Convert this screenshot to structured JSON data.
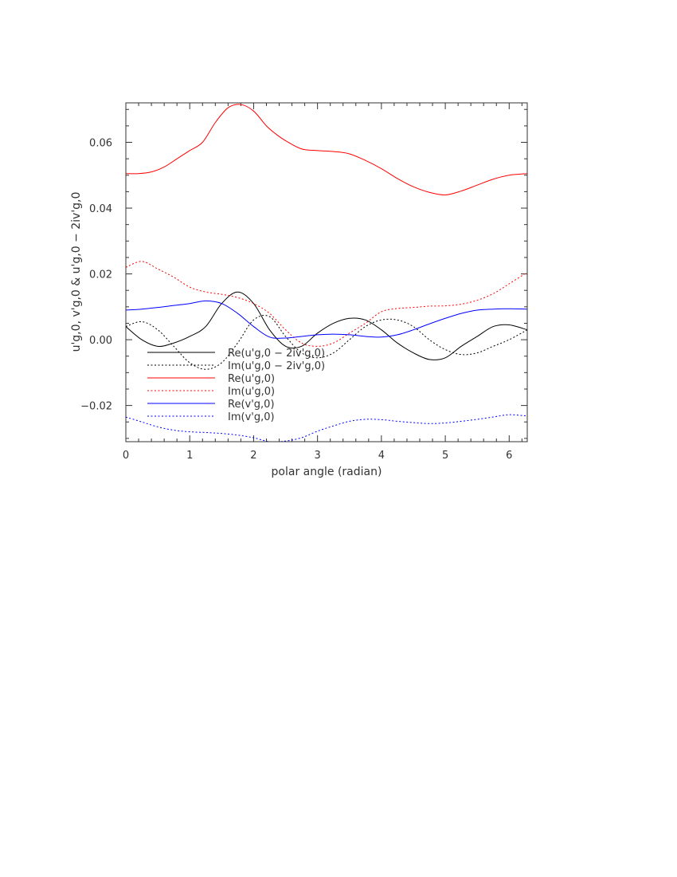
{
  "chart_data": {
    "type": "line",
    "xlabel": "polar angle (radian)",
    "ylabel": "u'g,0, v'g,0 & u'g,0 − 2iv'g,0",
    "xlim": [
      0,
      6.283
    ],
    "ylim": [
      -0.031,
      0.072
    ],
    "x_ticks": [
      0,
      1,
      2,
      3,
      4,
      5,
      6
    ],
    "y_ticks": [
      -0.02,
      0.0,
      0.02,
      0.04,
      0.06
    ],
    "x_tick_labels": [
      "0",
      "1",
      "2",
      "3",
      "4",
      "5",
      "6"
    ],
    "y_tick_labels": [
      "−0.02",
      "0.00",
      "0.02",
      "0.04",
      "0.06"
    ],
    "grid": false,
    "legend_position": "lower-left",
    "series": [
      {
        "name": "Re(u'g,0 − 2iv'g,0)",
        "color": "#000000",
        "dash": "solid",
        "x": [
          0,
          0.25,
          0.5,
          0.75,
          1.0,
          1.25,
          1.5,
          1.75,
          2.0,
          2.25,
          2.5,
          2.75,
          3.0,
          3.25,
          3.5,
          3.75,
          4.0,
          4.25,
          4.5,
          4.75,
          5.0,
          5.25,
          5.5,
          5.75,
          6.0,
          6.283
        ],
        "y": [
          0.004,
          0.0,
          -0.002,
          -0.001,
          0.001,
          0.004,
          0.011,
          0.0145,
          0.011,
          0.003,
          -0.002,
          -0.002,
          0.002,
          0.005,
          0.0065,
          0.006,
          0.003,
          -0.001,
          -0.004,
          -0.006,
          -0.0055,
          -0.002,
          0.001,
          0.004,
          0.0045,
          0.003
        ]
      },
      {
        "name": "Im(u'g,0 − 2iv'g,0)",
        "color": "#000000",
        "dash": "dotted",
        "x": [
          0,
          0.25,
          0.5,
          0.75,
          1.0,
          1.25,
          1.5,
          1.75,
          2.0,
          2.25,
          2.5,
          2.75,
          3.0,
          3.25,
          3.5,
          3.75,
          4.0,
          4.25,
          4.5,
          4.75,
          5.0,
          5.25,
          5.5,
          5.75,
          6.0,
          6.283
        ],
        "y": [
          0.004,
          0.0055,
          0.003,
          -0.002,
          -0.007,
          -0.009,
          -0.007,
          -0.001,
          0.006,
          0.007,
          0.001,
          -0.004,
          -0.0055,
          -0.004,
          0.0,
          0.004,
          0.006,
          0.006,
          0.004,
          0.0,
          -0.003,
          -0.0045,
          -0.004,
          -0.002,
          0.0,
          0.003
        ]
      },
      {
        "name": "Re(u'g,0)",
        "color": "#ff0000",
        "dash": "solid",
        "x": [
          0,
          0.2,
          0.4,
          0.6,
          0.8,
          1.0,
          1.2,
          1.4,
          1.6,
          1.8,
          2.0,
          2.2,
          2.35,
          2.5,
          2.75,
          3.0,
          3.25,
          3.5,
          3.75,
          4.0,
          4.25,
          4.5,
          4.75,
          5.0,
          5.25,
          5.5,
          5.75,
          6.0,
          6.283
        ],
        "y": [
          0.0505,
          0.0505,
          0.051,
          0.0525,
          0.055,
          0.0575,
          0.06,
          0.066,
          0.0705,
          0.0715,
          0.0695,
          0.065,
          0.0625,
          0.0605,
          0.058,
          0.0575,
          0.0572,
          0.0565,
          0.0545,
          0.052,
          0.049,
          0.0465,
          0.0448,
          0.044,
          0.0452,
          0.047,
          0.0488,
          0.05,
          0.0505
        ]
      },
      {
        "name": "Im(u'g,0)",
        "color": "#ff0000",
        "dash": "dotted",
        "x": [
          0,
          0.25,
          0.5,
          0.75,
          1.0,
          1.25,
          1.5,
          1.75,
          2.0,
          2.25,
          2.5,
          2.75,
          3.0,
          3.25,
          3.5,
          3.75,
          4.0,
          4.25,
          4.5,
          4.75,
          5.0,
          5.25,
          5.5,
          5.75,
          6.0,
          6.283
        ],
        "y": [
          0.022,
          0.0238,
          0.0215,
          0.019,
          0.016,
          0.0145,
          0.0138,
          0.0128,
          0.011,
          0.008,
          0.003,
          -0.001,
          -0.002,
          -0.001,
          0.002,
          0.005,
          0.0085,
          0.0095,
          0.0098,
          0.0102,
          0.0103,
          0.0108,
          0.012,
          0.014,
          0.017,
          0.0205
        ]
      },
      {
        "name": "Re(v'g,0)",
        "color": "#0000ff",
        "dash": "solid",
        "x": [
          0,
          0.25,
          0.5,
          0.75,
          1.0,
          1.25,
          1.5,
          1.75,
          2.0,
          2.25,
          2.5,
          2.75,
          3.0,
          3.25,
          3.5,
          3.75,
          4.0,
          4.25,
          4.5,
          4.75,
          5.0,
          5.25,
          5.5,
          5.75,
          6.0,
          6.283
        ],
        "y": [
          0.009,
          0.0093,
          0.0098,
          0.0104,
          0.011,
          0.0118,
          0.011,
          0.008,
          0.004,
          0.0008,
          0.0005,
          0.001,
          0.0015,
          0.0017,
          0.0015,
          0.001,
          0.0008,
          0.0015,
          0.003,
          0.0048,
          0.0065,
          0.008,
          0.009,
          0.0093,
          0.0094,
          0.0093
        ]
      },
      {
        "name": "Im(v'g,0)",
        "color": "#0000ff",
        "dash": "dotted",
        "x": [
          0,
          0.25,
          0.5,
          0.75,
          1.0,
          1.25,
          1.5,
          1.75,
          2.0,
          2.25,
          2.5,
          2.75,
          3.0,
          3.25,
          3.5,
          3.75,
          4.0,
          4.25,
          4.5,
          4.75,
          5.0,
          5.25,
          5.5,
          5.75,
          6.0,
          6.283
        ],
        "y": [
          -0.0235,
          -0.025,
          -0.0265,
          -0.0275,
          -0.028,
          -0.0282,
          -0.0285,
          -0.029,
          -0.0298,
          -0.031,
          -0.0308,
          -0.0298,
          -0.0278,
          -0.0262,
          -0.0248,
          -0.0242,
          -0.0243,
          -0.0248,
          -0.0252,
          -0.0255,
          -0.0253,
          -0.0248,
          -0.0242,
          -0.0235,
          -0.0228,
          -0.0232
        ]
      }
    ]
  }
}
